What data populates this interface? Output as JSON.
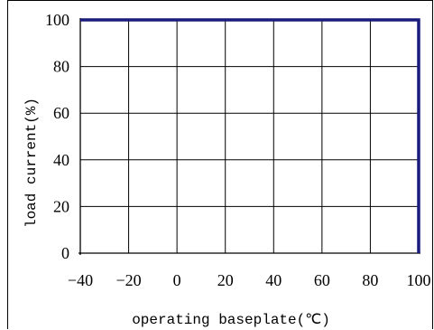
{
  "chart_data": {
    "type": "line",
    "title": "",
    "xlabel": "operating baseplate(℃)",
    "ylabel": "load current(%)",
    "xlim": [
      -40,
      100
    ],
    "ylim": [
      0,
      100
    ],
    "x_ticks": [
      "−40",
      "−20",
      "0",
      "20",
      "40",
      "60",
      "80",
      "100"
    ],
    "y_ticks": [
      "0",
      "20",
      "40",
      "60",
      "80",
      "100"
    ],
    "grid": true,
    "series": [
      {
        "x": [
          -40,
          100,
          100
        ],
        "y": [
          100,
          100,
          0
        ],
        "color": "#1a1a7a"
      }
    ]
  }
}
